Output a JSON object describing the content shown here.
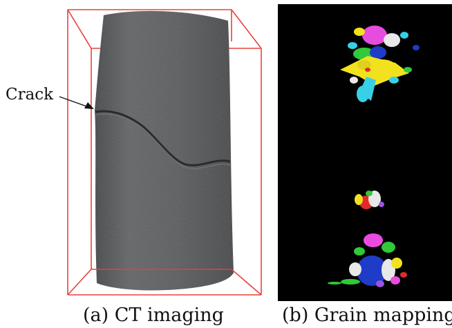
{
  "panel_a": {
    "annotation": "Crack",
    "caption": "(a) CT imaging",
    "box_color": "#e8413a",
    "specimen_color": "#4f5153"
  },
  "panel_b": {
    "caption": "(b) Grain mapping",
    "background": "#000000",
    "grain_colors": [
      "#e84cdf",
      "#f2e21e",
      "#37d0e6",
      "#31c83a",
      "#1e3cc8",
      "#e8e8e8",
      "#e02a2a",
      "#9d52e0"
    ]
  }
}
